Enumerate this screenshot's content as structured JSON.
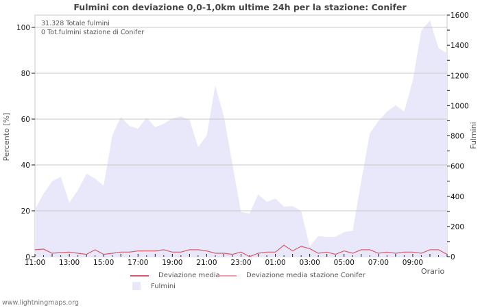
{
  "title": "Fulmini con deviazione 0,0-1,0km ultime 24h per la stazione: Conifer",
  "info": {
    "total": "31.328 Totale fulmini",
    "station_total": "0 Tot.fulmini stazione di Conifer"
  },
  "axes": {
    "left_label": "Percento   [%]",
    "right_label": "Fulmini",
    "x_label": "Orario"
  },
  "legend": {
    "item1": "Deviazione media",
    "item2": "Deviazione media stazione Conifer",
    "item3": "Fulmini"
  },
  "footer": "www.lightningmaps.org",
  "colors": {
    "area": "#e8e8fa",
    "dev_line": "#d45a6a",
    "dev_station_line": "#f0a0a8",
    "grid": "#c8c8c8"
  },
  "chart_data": {
    "type": "area+line",
    "title": "Fulmini con deviazione 0,0-1,0km ultime 24h per la stazione: Conifer",
    "xlabel": "Orario",
    "ylabel_left": "Percento [%]",
    "ylabel_right": "Fulmini",
    "ylim_left": [
      0,
      100
    ],
    "ylim_right": [
      0,
      1600
    ],
    "x_tick_labels": [
      "11:00",
      "13:00",
      "15:00",
      "17:00",
      "19:00",
      "21:00",
      "23:00",
      "01:00",
      "03:00",
      "05:00",
      "07:00",
      "09:00"
    ],
    "left_ticks": [
      0,
      20,
      40,
      60,
      80,
      100
    ],
    "right_ticks": [
      0,
      200,
      400,
      600,
      800,
      1000,
      1200,
      1400,
      1600
    ],
    "grid": true,
    "legend_position": "bottom",
    "interval_minutes": 30,
    "series": [
      {
        "name": "Fulmini",
        "axis": "right",
        "type": "area",
        "values": [
          313,
          417,
          499,
          530,
          358,
          440,
          549,
          517,
          471,
          802,
          925,
          866,
          848,
          921,
          857,
          880,
          916,
          929,
          907,
          725,
          802,
          1133,
          929,
          612,
          295,
          286,
          413,
          363,
          385,
          331,
          335,
          304,
          68,
          136,
          131,
          131,
          163,
          172,
          499,
          816,
          898,
          961,
          1002,
          961,
          1165,
          1496,
          1564,
          1382,
          1346
        ]
      },
      {
        "name": "Deviazione media",
        "axis": "left",
        "type": "line",
        "values": [
          3,
          3.3,
          1.5,
          1.8,
          2,
          1.5,
          1,
          3,
          1,
          1.5,
          2,
          2,
          2.5,
          2.5,
          2.5,
          3,
          2,
          2,
          3,
          3,
          2.5,
          1.5,
          1.5,
          1,
          2,
          0,
          1.5,
          2,
          2,
          5,
          2.5,
          4.5,
          3.5,
          1.5,
          2,
          1,
          2.5,
          1.5,
          3,
          3,
          1.5,
          2,
          1.5,
          2,
          2,
          1.5,
          3,
          3,
          1
        ]
      },
      {
        "name": "Deviazione media stazione Conifer",
        "axis": "left",
        "type": "line",
        "values": []
      }
    ]
  }
}
